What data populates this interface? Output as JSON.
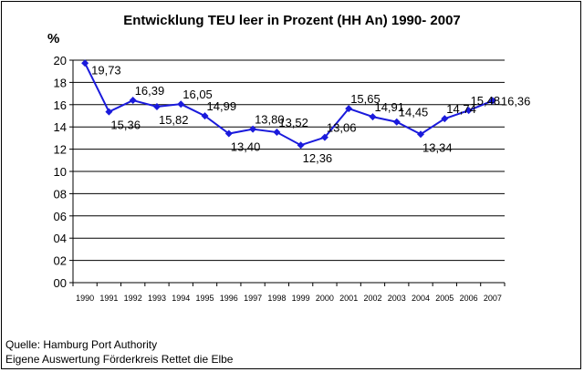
{
  "chart_data": {
    "type": "line",
    "title": "Entwicklung TEU leer in Prozent (HH An) 1990- 2007",
    "ylabel": "%",
    "xlabel": "",
    "ylim": [
      0,
      20
    ],
    "yticks": [
      "00",
      "02",
      "04",
      "06",
      "08",
      "10",
      "12",
      "14",
      "16",
      "18",
      "20"
    ],
    "grid": true,
    "legend": "none",
    "categories": [
      "1990",
      "1991",
      "1992",
      "1993",
      "1994",
      "1995",
      "1996",
      "1997",
      "1998",
      "1999",
      "2000",
      "2001",
      "2002",
      "2003",
      "2004",
      "2005",
      "2006",
      "2007"
    ],
    "series": [
      {
        "values": [
          19.73,
          15.36,
          16.39,
          15.82,
          16.05,
          14.99,
          13.4,
          13.8,
          13.52,
          12.36,
          13.06,
          15.65,
          14.91,
          14.45,
          13.34,
          14.74,
          15.48,
          16.36
        ],
        "labels": [
          "19,73",
          "15,36",
          "16,39",
          "15,82",
          "16,05",
          "14,99",
          "13,40",
          "13,80",
          "13,52",
          "12,36",
          "13,06",
          "15,65",
          "14,91",
          "14,45",
          "13,34",
          "14,74",
          "15,48",
          "16,36"
        ],
        "color": "#1a1adc"
      }
    ]
  },
  "source": {
    "line1": "Quelle: Hamburg Port Authority",
    "line2": "Eigene Auswertung Förderkreis Rettet die Elbe"
  }
}
